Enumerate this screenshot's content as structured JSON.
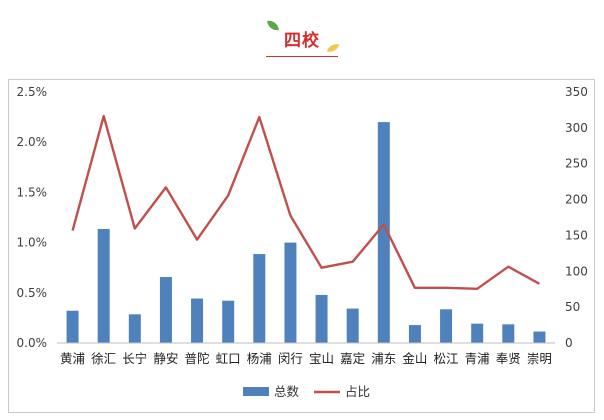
{
  "header": {
    "title": "四校"
  },
  "colors": {
    "bar": "#4f81bd",
    "line": "#c0504d",
    "title": "#d62d2d",
    "grid": "#e6e6e6"
  },
  "chart_data": {
    "type": "bar",
    "categories": [
      "黄浦",
      "徐汇",
      "长宁",
      "静安",
      "普陀",
      "虹口",
      "杨浦",
      "闵行",
      "宝山",
      "嘉定",
      "浦东",
      "金山",
      "松江",
      "青浦",
      "奉贤",
      "崇明"
    ],
    "series": [
      {
        "name": "总数",
        "type": "bar",
        "axis": "right",
        "values": [
          45,
          159,
          40,
          92,
          62,
          59,
          124,
          140,
          67,
          48,
          308,
          25,
          47,
          27,
          26,
          16
        ]
      },
      {
        "name": "占比",
        "type": "line",
        "axis": "left",
        "values": [
          0.0112,
          0.0226,
          0.0114,
          0.0155,
          0.0103,
          0.0147,
          0.0225,
          0.0127,
          0.0075,
          0.0081,
          0.0118,
          0.0055,
          0.0055,
          0.0054,
          0.0076,
          0.0059
        ]
      }
    ],
    "y_left": {
      "ticks": [
        "0.0%",
        "0.5%",
        "1.0%",
        "1.5%",
        "2.0%",
        "2.5%"
      ],
      "range": [
        0,
        0.025
      ]
    },
    "y_right": {
      "ticks": [
        "0",
        "50",
        "100",
        "150",
        "200",
        "250",
        "300",
        "350"
      ],
      "range": [
        0,
        350
      ]
    },
    "grid": false,
    "legend": {
      "position": "bottom",
      "items": [
        "总数",
        "占比"
      ]
    }
  }
}
